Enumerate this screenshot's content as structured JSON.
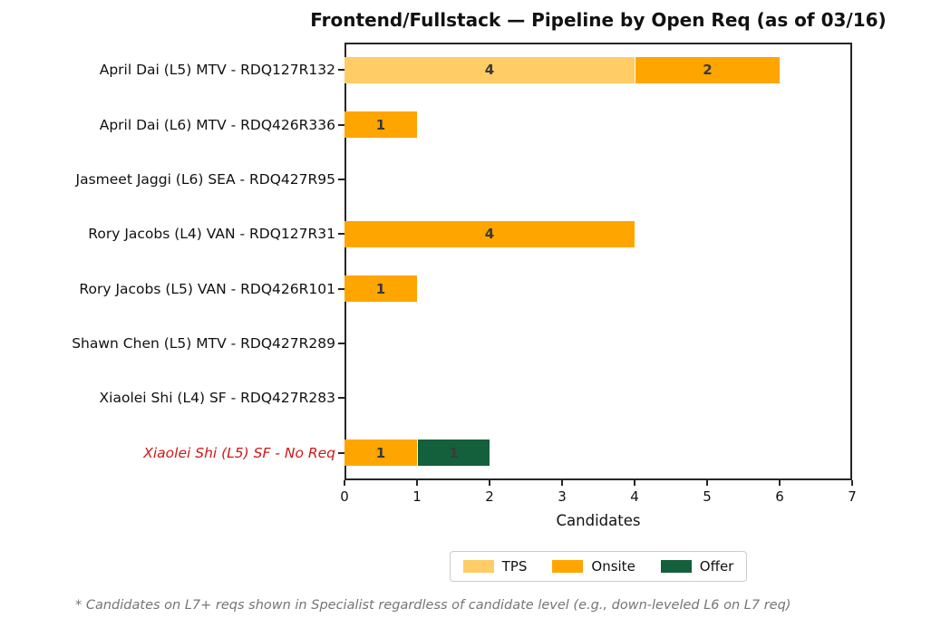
{
  "title": "Frontend/Fullstack — Pipeline by Open Req (as of 03/16)",
  "footnote": "* Candidates on L7+ reqs shown in Specialist regardless of candidate level (e.g., down-leveled L6 on L7 req)",
  "colors": {
    "tps": "#FFCC66",
    "onsite": "#FFA500",
    "offer": "#14603C",
    "highlight_label": "#D11717",
    "grid": "#E8E8E8",
    "spine": "#262626",
    "bar_value_text": "#3A3A3A",
    "footnote_text": "#757575"
  },
  "chart_data": {
    "type": "bar",
    "orientation": "horizontal",
    "stacked": true,
    "title": "Frontend/Fullstack — Pipeline by Open Req (as of 03/16)",
    "xlabel": "Candidates",
    "ylabel": "",
    "xlim": [
      0,
      7
    ],
    "xticks": [
      0,
      1,
      2,
      3,
      4,
      5,
      6,
      7
    ],
    "grid": true,
    "legend_position": "bottom",
    "categories": [
      "April Dai (L5) MTV - RDQ127R132",
      "April Dai (L6) MTV - RDQ426R336",
      "Jasmeet Jaggi (L6) SEA - RDQ427R95",
      "Rory Jacobs (L4) VAN - RDQ127R31",
      "Rory Jacobs (L5) VAN - RDQ426R101",
      "Shawn Chen (L5) MTV - RDQ427R289",
      "Xiaolei Shi (L4) SF - RDQ427R283",
      "Xiaolei Shi (L5) SF - No Req"
    ],
    "highlighted_category_index": 7,
    "series": [
      {
        "name": "TPS",
        "color": "#FFCC66",
        "values": [
          4,
          0,
          0,
          0,
          0,
          0,
          0,
          0
        ]
      },
      {
        "name": "Onsite",
        "color": "#FFA500",
        "values": [
          2,
          1,
          0,
          4,
          1,
          0,
          0,
          1
        ]
      },
      {
        "name": "Offer",
        "color": "#14603C",
        "values": [
          0,
          0,
          0,
          0,
          0,
          0,
          0,
          1
        ]
      }
    ]
  }
}
